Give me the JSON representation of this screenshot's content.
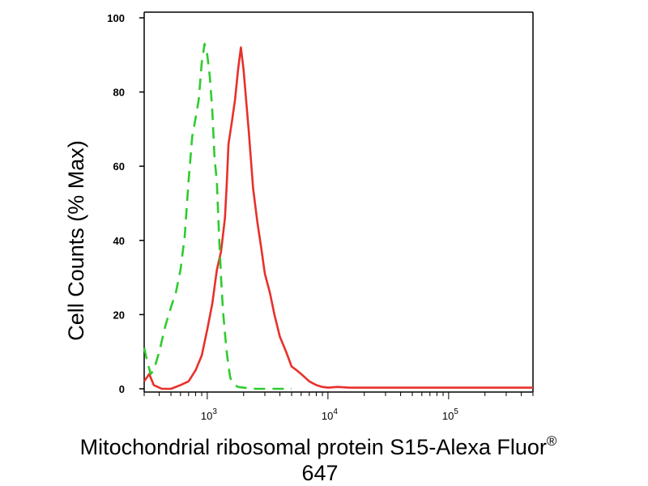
{
  "chart_data": {
    "type": "line",
    "xlabel": "Mitochondrial ribosomal protein S15-Alexa Fluor® 647",
    "xlabel_line1": "Mitochondrial ribosomal protein S15-Alexa Fluor",
    "xlabel_superscript": "®",
    "xlabel_line2": "647",
    "ylabel": "Cell Counts (% Max)",
    "xscale": "log",
    "xlim": [
      300,
      500000
    ],
    "ylim": [
      0,
      100
    ],
    "yticks": [
      0,
      20,
      40,
      60,
      80,
      100
    ],
    "ytick_labels": [
      "0",
      "20",
      "40",
      "60",
      "80",
      "100"
    ],
    "xticks": [
      1000,
      10000,
      100000
    ],
    "xtick_labels": [
      {
        "base": "10",
        "exp": "3"
      },
      {
        "base": "10",
        "exp": "4"
      },
      {
        "base": "10",
        "exp": "5"
      }
    ],
    "grid": false,
    "series": [
      {
        "color": "#e8302a",
        "style": "solid",
        "x": [
          300,
          330,
          360,
          420,
          500,
          600,
          700,
          800,
          900,
          1000,
          1100,
          1200,
          1300,
          1400,
          1450,
          1500,
          1600,
          1700,
          1800,
          1900,
          2000,
          2200,
          2400,
          2600,
          2800,
          3000,
          3300,
          3600,
          4000,
          4500,
          5000,
          5500,
          6000,
          7000,
          8000,
          9000,
          10000,
          12000,
          15000,
          20000,
          50000,
          100000,
          500000
        ],
        "y": [
          2,
          4,
          1,
          0,
          0,
          1,
          2,
          5,
          9,
          16,
          23,
          32,
          37,
          46,
          55,
          66,
          72,
          78,
          86,
          92,
          86,
          70,
          54,
          45,
          38,
          31,
          26,
          20,
          14,
          10,
          6,
          5,
          4,
          2,
          1,
          0.5,
          0.3,
          0.5,
          0.3,
          0.3,
          0.3,
          0.3,
          0.3
        ]
      },
      {
        "color": "#2ecc2e",
        "style": "dashed",
        "x": [
          300,
          320,
          340,
          360,
          400,
          450,
          500,
          550,
          600,
          650,
          700,
          750,
          800,
          850,
          900,
          950,
          1000,
          1050,
          1100,
          1150,
          1200,
          1250,
          1300,
          1350,
          1400,
          1450,
          1500,
          1550,
          1600,
          1700,
          1800,
          2000,
          2500,
          3000,
          5000
        ],
        "y": [
          11,
          7,
          4,
          5,
          10,
          17,
          22,
          26,
          32,
          41,
          56,
          68,
          73,
          78,
          88,
          93,
          90,
          84,
          75,
          62,
          56,
          42,
          30,
          21,
          15,
          10,
          6,
          3,
          2,
          1,
          0.5,
          0.3,
          0,
          0,
          0
        ]
      }
    ]
  }
}
